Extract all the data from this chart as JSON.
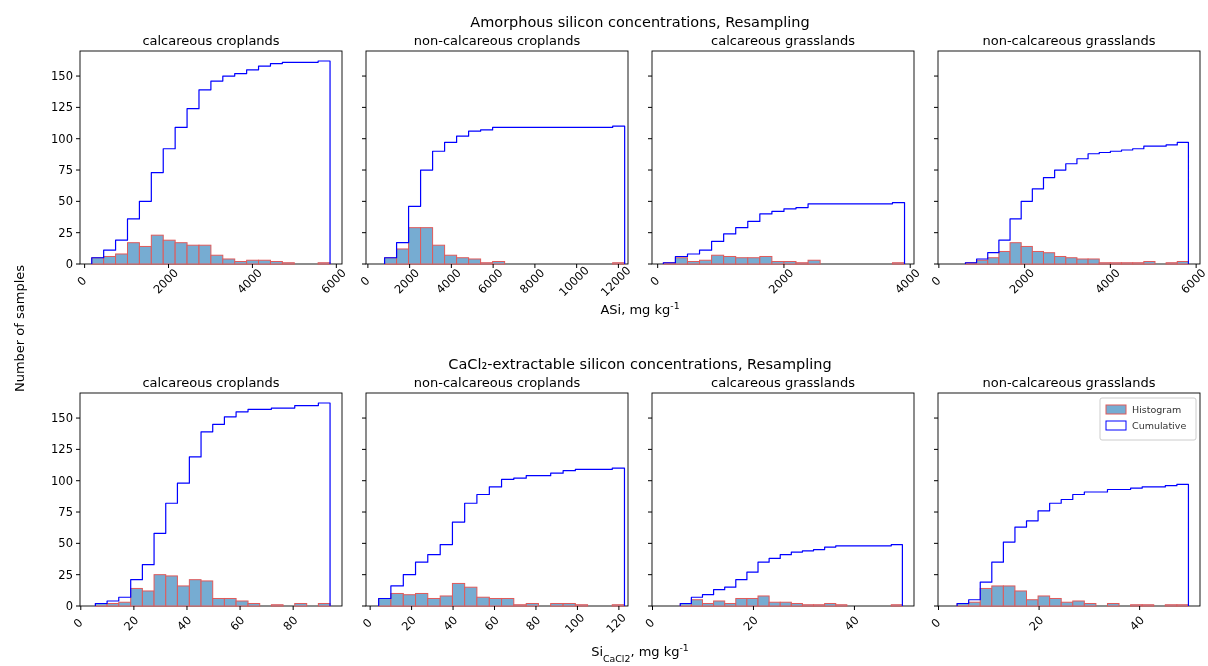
{
  "chart_data": [
    {
      "type": "histogram",
      "title": "calcareous croplands",
      "annotations": [
        "Amorphous silicon concentrations, Resampling"
      ],
      "ylabel": "Number of samples",
      "bins": [
        170,
        454,
        738,
        1022,
        1306,
        1590,
        1874,
        2158,
        2442,
        2726,
        3010,
        3294,
        3578,
        3862,
        4146,
        4430,
        4714,
        4998,
        5282,
        5566,
        5850
      ],
      "xlim": [
        -110,
        6135
      ],
      "xticks": [
        0,
        2000,
        4000,
        6000
      ],
      "ylim": [
        0,
        170
      ],
      "yticks": [
        0,
        25,
        50,
        75,
        100,
        125,
        150
      ],
      "series": [
        {
          "type": "histogram",
          "color": "#76acd2",
          "values": [
            5,
            6,
            8,
            17,
            14,
            23,
            19,
            17,
            15,
            15,
            7,
            4,
            2,
            3,
            3,
            2,
            1,
            0,
            0,
            1
          ]
        },
        {
          "type": "step",
          "color": "#0000ff",
          "x": [
            170,
            170,
            454,
            738,
            1022,
            1306,
            1590,
            1874,
            2158,
            2442,
            2726,
            3010,
            3294,
            3578,
            3862,
            4146,
            4430,
            4714,
            4998,
            5282,
            5566,
            5850,
            5850
          ],
          "values": [
            0,
            5,
            11,
            19,
            36,
            50,
            73,
            92,
            109,
            124,
            139,
            146,
            150,
            152,
            155,
            158,
            160,
            161,
            161,
            161,
            162,
            162,
            0
          ]
        }
      ]
    },
    {
      "type": "histogram",
      "title": "non-calcareous croplands",
      "xlabel": "ASi, mg kg$^{-1}$",
      "tick_labels": "x",
      "bins": [
        800,
        1375,
        1950,
        2525,
        3100,
        3675,
        4250,
        4825,
        5400,
        5975,
        6550,
        7125,
        7700,
        8275,
        8850,
        9425,
        10000,
        10575,
        11150,
        11725,
        12300
      ],
      "xlim": [
        -90,
        12460
      ],
      "xticks": [
        0,
        2000,
        4000,
        6000,
        8000,
        10000,
        12000
      ],
      "ylim": [
        0,
        170
      ],
      "yticks": [
        0,
        25,
        50,
        75,
        100,
        125,
        150
      ],
      "series": [
        {
          "type": "histogram",
          "color": "#76acd2",
          "values": [
            5,
            12,
            29,
            29,
            15,
            7,
            5,
            4,
            1,
            2,
            0,
            0,
            0,
            0,
            0,
            0,
            0,
            0,
            0,
            1
          ]
        },
        {
          "type": "step",
          "color": "#0000ff",
          "x": [
            800,
            800,
            1375,
            1950,
            2525,
            3100,
            3675,
            4250,
            4825,
            5400,
            5975,
            6550,
            7125,
            7700,
            8275,
            8850,
            9425,
            10000,
            10575,
            11150,
            11725,
            12300,
            12300
          ],
          "values": [
            0,
            5,
            17,
            46,
            75,
            90,
            97,
            102,
            106,
            107,
            109,
            109,
            109,
            109,
            109,
            109,
            109,
            109,
            109,
            109,
            110,
            110,
            0
          ]
        }
      ]
    },
    {
      "type": "histogram",
      "title": "calcareous grasslands",
      "tick_labels": "x",
      "bins": [
        90,
        281,
        472,
        663,
        854,
        1045,
        1236,
        1427,
        1618,
        1809,
        2000,
        2191,
        2382,
        2573,
        2764,
        2955,
        3146,
        3337,
        3528,
        3719,
        3910
      ],
      "xlim": [
        -90,
        4060
      ],
      "xticks": [
        0,
        2000,
        4000
      ],
      "ylim": [
        0,
        170
      ],
      "yticks": [
        0,
        25,
        50,
        75,
        100,
        125,
        150
      ],
      "series": [
        {
          "type": "histogram",
          "color": "#76acd2",
          "values": [
            1,
            5,
            2,
            3,
            7,
            6,
            5,
            5,
            6,
            2,
            2,
            1,
            3,
            0,
            0,
            0,
            0,
            0,
            0,
            1
          ]
        },
        {
          "type": "step",
          "color": "#0000ff",
          "x": [
            90,
            90,
            281,
            472,
            663,
            854,
            1045,
            1236,
            1427,
            1618,
            1809,
            2000,
            2191,
            2382,
            2573,
            2764,
            2955,
            3146,
            3337,
            3528,
            3719,
            3910,
            3910
          ],
          "values": [
            0,
            1,
            6,
            8,
            11,
            18,
            24,
            29,
            34,
            40,
            42,
            44,
            45,
            48,
            48,
            48,
            48,
            48,
            48,
            48,
            49,
            49,
            0
          ]
        }
      ]
    },
    {
      "type": "histogram",
      "title": "non-calcareous grasslands",
      "tick_labels": "x",
      "bins": [
        620,
        880,
        1140,
        1400,
        1660,
        1920,
        2180,
        2440,
        2700,
        2960,
        3220,
        3480,
        3740,
        4000,
        4260,
        4520,
        4780,
        5040,
        5300,
        5560,
        5820
      ],
      "xlim": [
        -20,
        6090
      ],
      "xticks": [
        0,
        2000,
        4000,
        6000
      ],
      "ylim": [
        0,
        170
      ],
      "yticks": [
        0,
        25,
        50,
        75,
        100,
        125,
        150
      ],
      "series": [
        {
          "type": "histogram",
          "color": "#76acd2",
          "values": [
            1,
            3,
            5,
            10,
            17,
            14,
            10,
            9,
            6,
            5,
            4,
            4,
            1,
            1,
            1,
            1,
            2,
            0,
            1,
            2
          ]
        },
        {
          "type": "step",
          "color": "#0000ff",
          "x": [
            620,
            620,
            880,
            1140,
            1400,
            1660,
            1920,
            2180,
            2440,
            2700,
            2960,
            3220,
            3480,
            3740,
            4000,
            4260,
            4520,
            4780,
            5040,
            5300,
            5560,
            5820,
            5820
          ],
          "values": [
            0,
            1,
            4,
            9,
            19,
            36,
            50,
            60,
            69,
            75,
            80,
            84,
            88,
            89,
            90,
            91,
            92,
            94,
            94,
            95,
            97,
            97,
            0
          ]
        }
      ]
    },
    {
      "type": "histogram",
      "title": "calcareous croplands",
      "annotations": [
        "CaCl₂-extractable silicon concentrations, Resampling"
      ],
      "bins": [
        5.5,
        9.9,
        14.3,
        18.8,
        23.2,
        27.6,
        32.0,
        36.4,
        40.9,
        45.3,
        49.7,
        54.1,
        58.5,
        63.0,
        67.4,
        71.8,
        76.2,
        80.6,
        85.1,
        89.5,
        93.9
      ],
      "xlim": [
        -0.3,
        98.4
      ],
      "xticks": [
        0,
        20,
        40,
        60,
        80
      ],
      "ylim": [
        0,
        170
      ],
      "yticks": [
        0,
        25,
        50,
        75,
        100,
        125,
        150
      ],
      "series": [
        {
          "type": "histogram",
          "color": "#76acd2",
          "values": [
            2,
            2,
            3,
            14,
            12,
            25,
            24,
            16,
            21,
            20,
            6,
            6,
            4,
            2,
            0,
            1,
            0,
            2,
            0,
            2
          ]
        },
        {
          "type": "step",
          "color": "#0000ff",
          "x": [
            5.5,
            5.5,
            9.9,
            14.3,
            18.8,
            23.2,
            27.6,
            32.0,
            36.4,
            40.9,
            45.3,
            49.7,
            54.1,
            58.5,
            63.0,
            67.4,
            71.8,
            76.2,
            80.6,
            85.1,
            89.5,
            93.9,
            93.9
          ],
          "values": [
            0,
            2,
            4,
            7,
            21,
            33,
            58,
            82,
            98,
            119,
            139,
            145,
            151,
            155,
            157,
            157,
            158,
            158,
            160,
            160,
            162,
            162,
            0
          ]
        }
      ]
    },
    {
      "type": "histogram",
      "title": "non-calcareous croplands",
      "xlabel": "Si$_{CaCl2}$, mg kg$^{-1}$",
      "tick_labels": "x",
      "bins": [
        4.1,
        10.0,
        16.0,
        21.9,
        27.8,
        33.8,
        39.7,
        45.6,
        51.5,
        57.5,
        63.4,
        69.3,
        75.3,
        81.2,
        87.1,
        93.1,
        99.0,
        104.9,
        110.8,
        116.8,
        122.7
      ],
      "xlim": [
        -2,
        124.4
      ],
      "xticks": [
        0,
        20,
        40,
        60,
        80,
        100,
        120
      ],
      "ylim": [
        0,
        170
      ],
      "yticks": [
        0,
        25,
        50,
        75,
        100,
        125,
        150
      ],
      "series": [
        {
          "type": "histogram",
          "color": "#76acd2",
          "values": [
            6,
            10,
            9,
            10,
            6,
            8,
            18,
            15,
            7,
            6,
            6,
            1,
            2,
            0,
            2,
            2,
            1,
            0,
            0,
            1
          ]
        },
        {
          "type": "step",
          "color": "#0000ff",
          "x": [
            4.1,
            4.1,
            10.0,
            16.0,
            21.9,
            27.8,
            33.8,
            39.7,
            45.6,
            51.5,
            57.5,
            63.4,
            69.3,
            75.3,
            81.2,
            87.1,
            93.1,
            99.0,
            104.9,
            110.8,
            116.8,
            122.7,
            122.7
          ],
          "values": [
            0,
            6,
            16,
            25,
            35,
            41,
            49,
            67,
            82,
            89,
            95,
            101,
            102,
            104,
            104,
            106,
            108,
            109,
            109,
            109,
            110,
            110,
            0
          ]
        }
      ]
    },
    {
      "type": "histogram",
      "title": "calcareous grasslands",
      "tick_labels": "x",
      "bins": [
        5.5,
        7.7,
        9.9,
        12.1,
        14.3,
        16.5,
        18.7,
        20.9,
        23.1,
        25.3,
        27.5,
        29.7,
        31.9,
        34.1,
        36.3,
        38.5,
        40.7,
        42.9,
        45.1,
        47.3,
        49.5
      ],
      "xlim": [
        -0.1,
        51.8
      ],
      "xticks": [
        0,
        20,
        40
      ],
      "ylim": [
        0,
        170
      ],
      "yticks": [
        0,
        25,
        50,
        75,
        100,
        125,
        150
      ],
      "series": [
        {
          "type": "histogram",
          "color": "#76acd2",
          "values": [
            2,
            5,
            2,
            4,
            2,
            6,
            6,
            8,
            3,
            3,
            2,
            1,
            1,
            2,
            1,
            0,
            0,
            0,
            0,
            1
          ]
        },
        {
          "type": "step",
          "color": "#0000ff",
          "x": [
            5.5,
            5.5,
            7.7,
            9.9,
            12.1,
            14.3,
            16.5,
            18.7,
            20.9,
            23.1,
            25.3,
            27.5,
            29.7,
            31.9,
            34.1,
            36.3,
            38.5,
            40.7,
            42.9,
            45.1,
            47.3,
            49.5,
            49.5
          ],
          "values": [
            0,
            2,
            7,
            9,
            13,
            15,
            21,
            27,
            35,
            38,
            41,
            43,
            44,
            45,
            47,
            48,
            48,
            48,
            48,
            48,
            49,
            49,
            0
          ]
        }
      ]
    },
    {
      "type": "histogram",
      "title": "non-calcareous grasslands",
      "tick_labels": "x",
      "legend": "top right",
      "bins": [
        3.7,
        6.0,
        8.3,
        10.6,
        12.9,
        15.2,
        17.5,
        19.8,
        22.1,
        24.4,
        26.7,
        29.0,
        31.3,
        33.6,
        35.9,
        38.2,
        40.5,
        42.8,
        45.1,
        47.4,
        49.7
      ],
      "xlim": [
        -0.1,
        52.0
      ],
      "xticks": [
        0,
        20,
        40
      ],
      "ylim": [
        0,
        170
      ],
      "yticks": [
        0,
        25,
        50,
        75,
        100,
        125,
        150
      ],
      "series": [
        {
          "type": "histogram",
          "name": "Histogram",
          "color": "#76acd2",
          "values": [
            2,
            3,
            14,
            16,
            16,
            12,
            5,
            8,
            6,
            3,
            4,
            2,
            0,
            2,
            0,
            1,
            1,
            0,
            1,
            1
          ]
        },
        {
          "type": "step",
          "name": "Cumulative",
          "color": "#0000ff",
          "x": [
            3.7,
            3.7,
            6.0,
            8.3,
            10.6,
            12.9,
            15.2,
            17.5,
            19.8,
            22.1,
            24.4,
            26.7,
            29.0,
            31.3,
            33.6,
            35.9,
            38.2,
            40.5,
            42.8,
            45.1,
            47.4,
            49.7,
            49.7
          ],
          "values": [
            0,
            2,
            5,
            19,
            35,
            51,
            63,
            68,
            76,
            82,
            85,
            89,
            91,
            91,
            93,
            93,
            94,
            95,
            95,
            96,
            97,
            97,
            0
          ]
        }
      ]
    }
  ]
}
